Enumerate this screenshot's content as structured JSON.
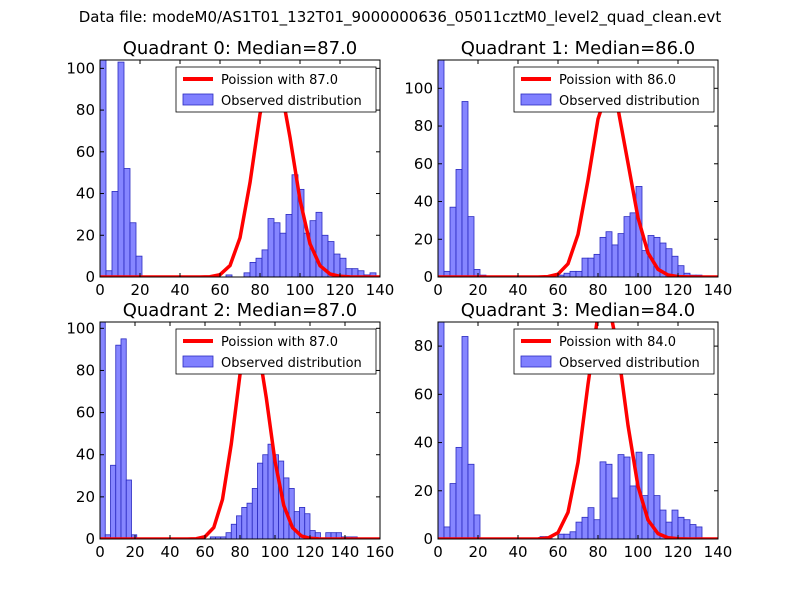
{
  "suptitle": "Data file: modeM0/AS1T01_132T01_9000000636_05011cztM0_level2_quad_clean.evt",
  "colors": {
    "hist_fill": "#8080ff",
    "hist_edge": "#2a2ac0",
    "poisson_line": "#ff0000"
  },
  "chart_data": [
    {
      "type": "bar",
      "title": "Quadrant 0: Median=87.0",
      "legend": [
        "Poission with 87.0",
        "Observed distribution"
      ],
      "legend_position": "top-right",
      "xlim": [
        0,
        140
      ],
      "ylim": [
        0,
        104
      ],
      "xticks": [
        0,
        20,
        40,
        60,
        80,
        100,
        120,
        140
      ],
      "yticks": [
        0,
        20,
        40,
        60,
        80,
        100
      ],
      "hist_bins": [
        [
          0,
          3,
          104
        ],
        [
          3,
          6,
          3
        ],
        [
          6,
          9,
          41
        ],
        [
          9,
          12,
          103
        ],
        [
          12,
          15,
          52
        ],
        [
          15,
          18,
          26
        ],
        [
          18,
          21,
          10
        ],
        [
          21,
          24,
          0
        ],
        [
          63,
          66,
          1
        ],
        [
          66,
          69,
          0
        ],
        [
          69,
          72,
          0
        ],
        [
          72,
          75,
          2
        ],
        [
          75,
          78,
          7
        ],
        [
          78,
          81,
          9
        ],
        [
          81,
          84,
          13
        ],
        [
          84,
          87,
          28
        ],
        [
          87,
          90,
          26
        ],
        [
          90,
          93,
          21
        ],
        [
          93,
          96,
          30
        ],
        [
          96,
          99,
          49
        ],
        [
          99,
          102,
          42
        ],
        [
          102,
          105,
          21
        ],
        [
          105,
          108,
          27
        ],
        [
          108,
          111,
          31
        ],
        [
          111,
          114,
          20
        ],
        [
          114,
          117,
          17
        ],
        [
          117,
          120,
          11
        ],
        [
          120,
          123,
          9
        ],
        [
          123,
          126,
          4
        ],
        [
          126,
          129,
          4
        ],
        [
          129,
          132,
          3
        ],
        [
          132,
          135,
          1
        ],
        [
          135,
          138,
          2
        ]
      ],
      "poisson_median": 87.0,
      "poisson_peak": 100
    },
    {
      "type": "bar",
      "title": "Quadrant 1: Median=86.0",
      "legend": [
        "Poission with 86.0",
        "Observed distribution"
      ],
      "legend_position": "top-right",
      "xlim": [
        0,
        140
      ],
      "ylim": [
        0,
        115
      ],
      "xticks": [
        0,
        20,
        40,
        60,
        80,
        100,
        120,
        140
      ],
      "yticks": [
        0,
        20,
        40,
        60,
        80,
        100
      ],
      "hist_bins": [
        [
          0,
          3,
          115
        ],
        [
          3,
          6,
          3
        ],
        [
          6,
          9,
          37
        ],
        [
          9,
          12,
          57
        ],
        [
          12,
          15,
          93
        ],
        [
          15,
          18,
          32
        ],
        [
          18,
          21,
          4
        ],
        [
          21,
          24,
          1
        ],
        [
          57,
          60,
          1
        ],
        [
          60,
          63,
          1
        ],
        [
          63,
          66,
          2
        ],
        [
          66,
          69,
          3
        ],
        [
          69,
          72,
          3
        ],
        [
          72,
          75,
          10
        ],
        [
          75,
          78,
          10
        ],
        [
          78,
          81,
          12
        ],
        [
          81,
          84,
          21
        ],
        [
          84,
          87,
          24
        ],
        [
          87,
          90,
          17
        ],
        [
          90,
          93,
          23
        ],
        [
          93,
          96,
          32
        ],
        [
          96,
          99,
          34
        ],
        [
          99,
          102,
          48
        ],
        [
          102,
          105,
          14
        ],
        [
          105,
          108,
          22
        ],
        [
          108,
          111,
          21
        ],
        [
          111,
          114,
          18
        ],
        [
          114,
          117,
          15
        ],
        [
          117,
          120,
          11
        ],
        [
          120,
          123,
          6
        ],
        [
          123,
          126,
          2
        ],
        [
          126,
          129,
          1
        ],
        [
          129,
          132,
          1
        ]
      ],
      "poisson_median": 86.0,
      "poisson_peak": 100
    },
    {
      "type": "bar",
      "title": "Quadrant 2: Median=87.0",
      "legend": [
        "Poission with 87.0",
        "Observed distribution"
      ],
      "legend_position": "top-right",
      "xlim": [
        0,
        160
      ],
      "ylim": [
        0,
        103
      ],
      "xticks": [
        0,
        20,
        40,
        60,
        80,
        100,
        120,
        140,
        160
      ],
      "yticks": [
        0,
        20,
        40,
        60,
        80,
        100
      ],
      "hist_bins": [
        [
          0,
          3,
          103
        ],
        [
          3,
          6,
          2
        ],
        [
          6,
          9,
          35
        ],
        [
          9,
          12,
          92
        ],
        [
          12,
          15,
          95
        ],
        [
          15,
          18,
          28
        ],
        [
          18,
          21,
          2
        ],
        [
          63,
          66,
          1
        ],
        [
          66,
          69,
          1
        ],
        [
          69,
          72,
          1
        ],
        [
          72,
          75,
          3
        ],
        [
          75,
          78,
          7
        ],
        [
          78,
          81,
          11
        ],
        [
          81,
          84,
          15
        ],
        [
          84,
          87,
          17
        ],
        [
          87,
          90,
          24
        ],
        [
          90,
          93,
          36
        ],
        [
          93,
          96,
          40
        ],
        [
          96,
          99,
          45
        ],
        [
          99,
          102,
          40
        ],
        [
          102,
          105,
          37
        ],
        [
          105,
          108,
          29
        ],
        [
          108,
          111,
          24
        ],
        [
          111,
          114,
          13
        ],
        [
          114,
          117,
          15
        ],
        [
          117,
          120,
          12
        ],
        [
          120,
          123,
          4
        ],
        [
          123,
          126,
          3
        ],
        [
          126,
          129,
          0
        ],
        [
          129,
          132,
          3
        ],
        [
          132,
          135,
          3
        ],
        [
          135,
          138,
          3
        ],
        [
          138,
          141,
          1
        ],
        [
          141,
          144,
          1
        ],
        [
          144,
          147,
          1
        ]
      ],
      "poisson_median": 87.0,
      "poisson_peak": 100
    },
    {
      "type": "bar",
      "title": "Quadrant 3: Median=84.0",
      "legend": [
        "Poission with 84.0",
        "Observed distribution"
      ],
      "legend_position": "top-right",
      "xlim": [
        0,
        140
      ],
      "ylim": [
        0,
        90
      ],
      "xticks": [
        0,
        20,
        40,
        60,
        80,
        100,
        120,
        140
      ],
      "yticks": [
        0,
        20,
        40,
        60,
        80
      ],
      "hist_bins": [
        [
          0,
          3,
          90
        ],
        [
          3,
          6,
          5
        ],
        [
          6,
          9,
          23
        ],
        [
          9,
          12,
          38
        ],
        [
          12,
          15,
          84
        ],
        [
          15,
          18,
          31
        ],
        [
          18,
          21,
          10
        ],
        [
          51,
          54,
          1
        ],
        [
          54,
          57,
          1
        ],
        [
          57,
          60,
          0
        ],
        [
          60,
          63,
          2
        ],
        [
          63,
          66,
          2
        ],
        [
          66,
          69,
          3
        ],
        [
          69,
          72,
          7
        ],
        [
          72,
          75,
          9
        ],
        [
          75,
          78,
          13
        ],
        [
          78,
          81,
          8
        ],
        [
          81,
          84,
          32
        ],
        [
          84,
          87,
          31
        ],
        [
          87,
          90,
          17
        ],
        [
          90,
          93,
          35
        ],
        [
          93,
          96,
          34
        ],
        [
          96,
          99,
          22
        ],
        [
          99,
          102,
          36
        ],
        [
          102,
          105,
          18
        ],
        [
          105,
          108,
          35
        ],
        [
          108,
          111,
          18
        ],
        [
          111,
          114,
          12
        ],
        [
          114,
          117,
          7
        ],
        [
          117,
          120,
          12
        ],
        [
          120,
          123,
          9
        ],
        [
          123,
          126,
          8
        ],
        [
          126,
          129,
          6
        ],
        [
          129,
          132,
          5
        ]
      ],
      "poisson_median": 84.0,
      "poisson_peak": 100
    }
  ]
}
